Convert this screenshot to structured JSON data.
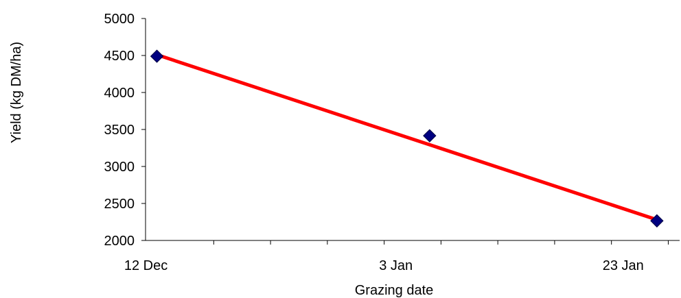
{
  "chart_data": {
    "type": "scatter",
    "title": "",
    "xlabel": "Grazing date",
    "ylabel": "Yield (kg DM/ha)",
    "x_tick_labels": [
      {
        "label": "12 Dec",
        "day": 0
      },
      {
        "label": "3 Jan",
        "day": 22
      },
      {
        "label": "23 Jan",
        "day": 42
      }
    ],
    "xlim": [
      "11 Dec",
      "27 Jan"
    ],
    "ylim": [
      2000,
      5000
    ],
    "y_ticks": [
      2000,
      2500,
      3000,
      3500,
      4000,
      4500,
      5000
    ],
    "grid": false,
    "legend": "none",
    "series": [
      {
        "marker": "diamond",
        "color": "#000080",
        "points": [
          {
            "x": "12 Dec",
            "y": 4490
          },
          {
            "x": "5 Jan",
            "y": 3415
          },
          {
            "x": "25 Jan",
            "y": 2265
          }
        ]
      }
    ],
    "trendline": {
      "type": "linear",
      "color": "#ff0000",
      "from": {
        "x": "12 Dec",
        "y": 4510
      },
      "to": {
        "x": "25 Jan",
        "y": 2280
      }
    }
  }
}
